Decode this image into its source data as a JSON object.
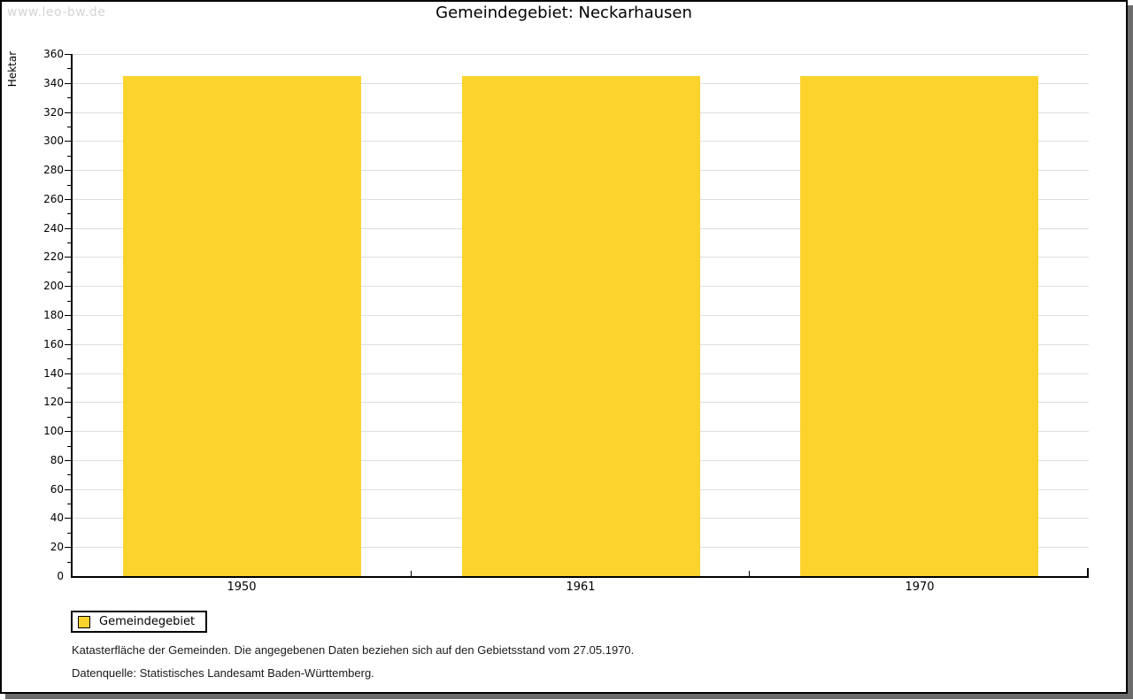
{
  "watermark": "www.leo-bw.de",
  "chart_data": {
    "type": "bar",
    "title": "Gemeindegebiet: Neckarhausen",
    "categories": [
      "1950",
      "1961",
      "1970"
    ],
    "series": [
      {
        "name": "Gemeindegebiet",
        "values": [
          345,
          345,
          345
        ]
      }
    ],
    "xlabel": "",
    "ylabel": "Hektar",
    "ylim": [
      0,
      360
    ],
    "ytick_step": 20,
    "minor_tick_step": 10,
    "grid": "horizontal-major",
    "legend_position": "bottom-left",
    "bar_color": "#FCD32D"
  },
  "legend": {
    "items": [
      {
        "label": "Gemeindegebiet",
        "color": "#FCD32D"
      }
    ]
  },
  "footer": {
    "note": "Katasterfläche der Gemeinden. Die angegebenen Daten beziehen sich auf den Gebietsstand vom 27.05.1970.",
    "source": "Datenquelle: Statistisches Landesamt Baden-Württemberg."
  },
  "colors": {
    "bar": "#FCD32D",
    "gridline": "#DEDEDE",
    "axis": "#000000",
    "frame_border": "#000000",
    "frame_shadow": "#6B6B6B",
    "watermark_text": "#D4D4D4",
    "background": "#FFFFFF"
  }
}
